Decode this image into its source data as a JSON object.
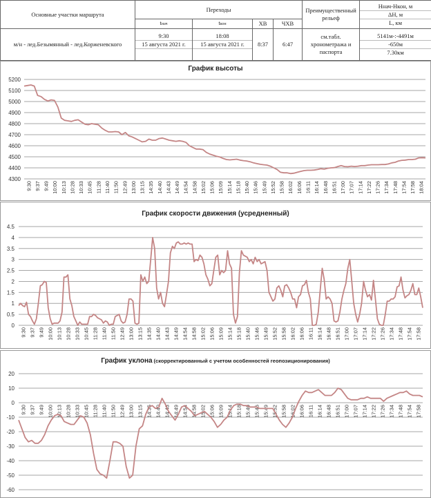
{
  "route_table": {
    "headers": {
      "segments": "Основные участки маршрута",
      "transitions": "Переходы",
      "t_start": "t",
      "t_start_sub": "нач",
      "t_end": "t",
      "t_end_sub": "кон",
      "xv": "ХВ",
      "chxv": "ЧХВ",
      "relief": "Преимущественный рельеф",
      "h_label": "Hнач-Hкон, м",
      "dh_label": "ΔH, м",
      "l_label": "L, км"
    },
    "row": {
      "segment": "м/н - лед.Безымянный - лед.Корженевского",
      "t_start_time": "9:30",
      "t_start_date": "15 августа 2021 г.",
      "t_end_time": "18:08",
      "t_end_date": "15 августа 2021 г.",
      "xv": "8:37",
      "chxv": "6:47",
      "relief": "см.табл. хронометража и паспорта",
      "h_range": "5141м-:-4491м",
      "dh": "-650м",
      "length": "7.30км"
    }
  },
  "colors": {
    "line": "#c48585",
    "grid": "#a6a6a6",
    "text": "#333333"
  },
  "chart_data": [
    {
      "type": "line",
      "title": "График высоты",
      "ylim": [
        4300,
        5200
      ],
      "ystep": 100,
      "xlabels": [
        "9:30",
        "9:37",
        "9:49",
        "10:00",
        "10:13",
        "10:28",
        "10:33",
        "10:45",
        "11:28",
        "11:40",
        "11:50",
        "12:49",
        "13:00",
        "13:15",
        "14:35",
        "14:40",
        "14:43",
        "14:49",
        "14:54",
        "14:58",
        "15:02",
        "15:06",
        "15:09",
        "15:14",
        "15:18",
        "15:40",
        "15:46",
        "15:49",
        "15:52",
        "15:58",
        "16:02",
        "16:06",
        "16:11",
        "16:14",
        "16:48",
        "16:51",
        "17:00",
        "17:07",
        "17:14",
        "17:22",
        "17:26",
        "17:34",
        "17:48",
        "17:54",
        "17:58",
        "18:04"
      ],
      "values": [
        5140,
        5145,
        5150,
        5140,
        5055,
        5045,
        5020,
        5005,
        5015,
        5010,
        4950,
        4850,
        4830,
        4825,
        4820,
        4830,
        4835,
        4815,
        4795,
        4790,
        4800,
        4795,
        4790,
        4760,
        4740,
        4725,
        4725,
        4728,
        4725,
        4700,
        4720,
        4690,
        4680,
        4665,
        4650,
        4635,
        4640,
        4660,
        4650,
        4650,
        4665,
        4670,
        4660,
        4650,
        4645,
        4640,
        4645,
        4640,
        4630,
        4600,
        4585,
        4570,
        4570,
        4565,
        4540,
        4525,
        4515,
        4505,
        4498,
        4485,
        4475,
        4472,
        4475,
        4478,
        4470,
        4465,
        4462,
        4455,
        4445,
        4438,
        4432,
        4428,
        4425,
        4415,
        4400,
        4385,
        4360,
        4355,
        4355,
        4348,
        4352,
        4360,
        4368,
        4375,
        4378,
        4378,
        4380,
        4385,
        4392,
        4388,
        4396,
        4400,
        4402,
        4412,
        4420,
        4412,
        4410,
        4415,
        4412,
        4415,
        4420,
        4420,
        4425,
        4428,
        4428,
        4428,
        4430,
        4430,
        4435,
        4445,
        4450,
        4462,
        4468,
        4470,
        4475,
        4475,
        4478,
        4490,
        4492,
        4490
      ]
    },
    {
      "type": "line",
      "title": "График скорости движения (усредненный)",
      "ylim": [
        0,
        4.5
      ],
      "ystep": 0.5,
      "xlabels": [
        "9:30",
        "9:37",
        "9:49",
        "10:00",
        "10:13",
        "10:28",
        "10:33",
        "10:45",
        "11:28",
        "11:40",
        "11:50",
        "12:49",
        "13:00",
        "13:15",
        "14:35",
        "14:40",
        "14:43",
        "14:49",
        "14:54",
        "14:58",
        "15:02",
        "15:06",
        "15:09",
        "15:14",
        "15:18",
        "15:40",
        "15:46",
        "15:49",
        "15:52",
        "15:58",
        "16:02",
        "16:06",
        "16:11",
        "16:14",
        "16:48",
        "16:51",
        "17:00",
        "17:07",
        "17:14",
        "17:22",
        "17:26",
        "17:34",
        "17:48",
        "17:54",
        "17:58"
      ],
      "values": [
        0.9,
        1.0,
        0.9,
        0.85,
        1.05,
        0.5,
        0.4,
        0.2,
        0.05,
        0.3,
        1.0,
        1.8,
        1.85,
        2.0,
        1.95,
        0.8,
        0.3,
        0.05,
        0.1,
        0.1,
        0.1,
        0.2,
        0.6,
        2.2,
        2.2,
        2.3,
        1.2,
        0.9,
        0.4,
        0.2,
        0.0,
        0.15,
        0.05,
        0.05,
        0.05,
        0.05,
        0.4,
        0.4,
        0.5,
        0.45,
        0.35,
        0.3,
        0.25,
        0.1,
        0.2,
        0.15,
        0.0,
        0.05,
        0.05,
        0.4,
        0.45,
        0.5,
        0.2,
        0.1,
        0.15,
        0.5,
        1.2,
        1.2,
        1.1,
        0.1,
        0.05,
        0.1,
        2.3,
        2.0,
        2.2,
        1.9,
        2.0,
        3.0,
        4.0,
        3.5,
        1.7,
        1.2,
        1.5,
        1.0,
        0.85,
        1.4,
        2.0,
        3.3,
        3.6,
        3.5,
        3.75,
        3.8,
        3.7,
        3.7,
        3.75,
        3.7,
        3.75,
        3.7,
        3.7,
        2.9,
        3.0,
        2.95,
        3.2,
        3.1,
        2.8,
        2.3,
        2.1,
        1.8,
        1.9,
        2.5,
        3.1,
        3.2,
        2.3,
        2.5,
        2.4,
        2.5,
        3.4,
        2.8,
        2.6,
        0.5,
        0.1,
        0.4,
        2.4,
        3.4,
        3.2,
        3.15,
        3.1,
        2.9,
        3.0,
        2.8,
        3.1,
        2.9,
        3.0,
        2.8,
        2.85,
        2.9,
        2.5,
        1.5,
        1.3,
        1.1,
        1.2,
        1.7,
        1.8,
        1.6,
        1.3,
        1.8,
        1.85,
        1.7,
        1.5,
        1.2,
        1.2,
        0.8,
        1.3,
        1.4,
        1.8,
        1.85,
        2.05,
        1.5,
        1.2,
        0.0,
        0.0,
        0.05,
        0.6,
        1.6,
        2.6,
        2.1,
        1.2,
        1.3,
        1.2,
        1.0,
        0.2,
        0.15,
        0.2,
        0.6,
        1.2,
        1.6,
        1.9,
        2.6,
        3.0,
        2.0,
        1.0,
        0.5,
        0.15,
        0.5,
        1.0,
        2.0,
        1.6,
        1.3,
        1.4,
        1.15,
        2.05,
        1.2,
        0.3,
        0.05,
        0.0,
        0.0,
        0.5,
        1.1,
        1.1,
        1.2,
        1.2,
        1.3,
        1.75,
        1.8,
        2.2,
        1.6,
        1.25,
        1.35,
        1.4,
        1.6,
        1.9,
        1.4,
        1.4,
        1.7,
        1.3,
        0.8
      ]
    },
    {
      "type": "line",
      "title": "График уклона",
      "subtitle": "(скорректированный  с учетом  особенностей  геопозиционирования)",
      "ylim": [
        -60,
        20
      ],
      "ystep": 10,
      "xlabels": [
        "9:30",
        "9:37",
        "9:49",
        "10:00",
        "10:13",
        "10:28",
        "10:33",
        "10:45",
        "11:28",
        "11:40",
        "11:50",
        "12:49",
        "13:00",
        "13:15",
        "14:35",
        "14:40",
        "14:43",
        "14:49",
        "14:54",
        "14:58",
        "15:02",
        "15:06",
        "15:09",
        "15:14",
        "15:18",
        "15:40",
        "15:46",
        "15:49",
        "15:52",
        "15:58",
        "16:02",
        "16:06",
        "16:11",
        "16:14",
        "16:48",
        "16:51",
        "17:00",
        "17:07",
        "17:14",
        "17:22",
        "17:26",
        "17:34",
        "17:48",
        "17:54",
        "17:58"
      ],
      "values": [
        -12,
        -18,
        -24,
        -27,
        -26,
        -28,
        -28,
        -26,
        -22,
        -16,
        -12,
        -9,
        -8,
        -9,
        -13,
        -14,
        -15,
        -15,
        -12,
        -9,
        -10,
        -14,
        -22,
        -35,
        -46,
        -49,
        -50,
        -52,
        -40,
        -27,
        -27,
        -28,
        -30,
        -44,
        -52,
        -50,
        -30,
        -18,
        -16,
        -8,
        -3,
        -2,
        -4,
        -3,
        3,
        -1,
        -6,
        -9,
        -12,
        -8,
        -3,
        -2,
        -4,
        -6,
        -9,
        -8,
        -7,
        -6,
        -8,
        -10,
        -13,
        -17,
        -15,
        -12,
        -10,
        -5,
        -2,
        -1,
        -1,
        -2,
        -2,
        -3,
        -3,
        -3,
        -4,
        -4,
        -4,
        -4,
        -4,
        -8,
        -12,
        -15,
        -17,
        -14,
        -10,
        -4,
        1,
        5,
        8,
        7,
        7,
        8,
        9,
        7,
        5,
        5,
        5,
        7,
        10,
        9,
        6,
        3,
        2,
        2,
        2,
        3,
        3,
        4,
        3,
        3,
        3,
        3,
        1,
        3,
        4,
        5,
        6,
        7,
        7,
        8,
        6,
        5,
        5,
        5,
        4
      ]
    }
  ]
}
